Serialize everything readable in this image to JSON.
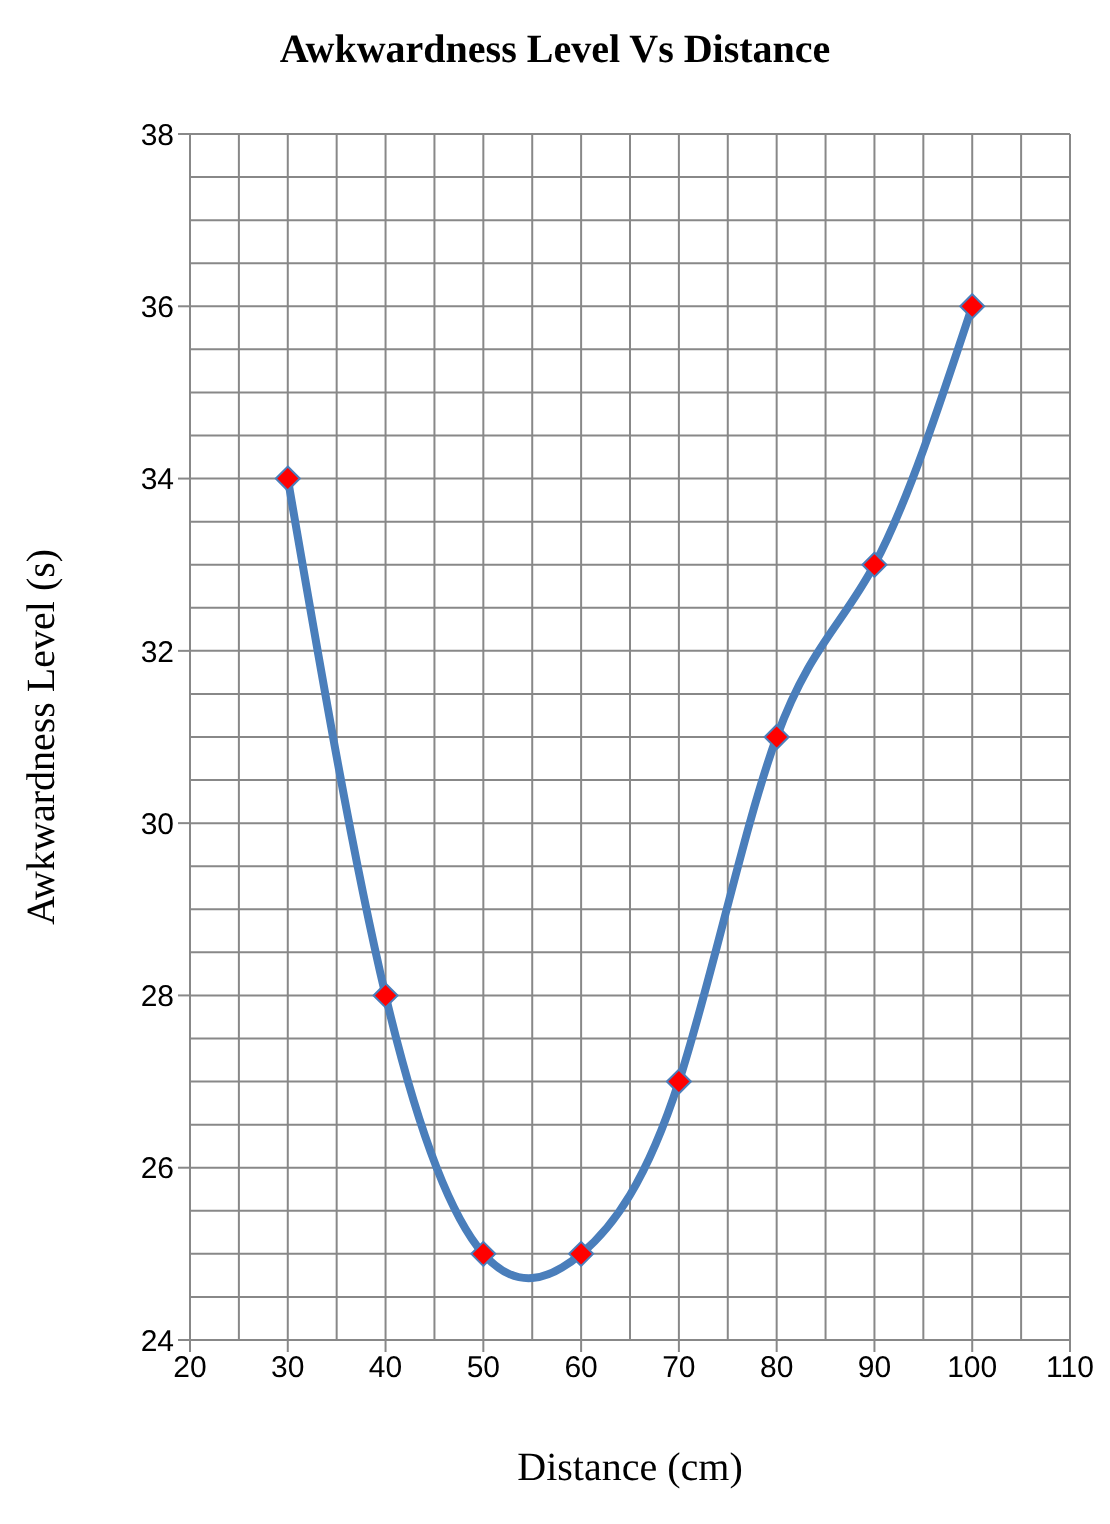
{
  "chart_data": {
    "type": "line",
    "title": "Awkwardness Level Vs Distance",
    "xlabel": "Distance (cm)",
    "ylabel": "Awkwardness Level (s)",
    "x": [
      30,
      40,
      50,
      60,
      70,
      80,
      90,
      100
    ],
    "series": [
      {
        "color": "#4a7ebb",
        "values": [
          34,
          28,
          25,
          25,
          27,
          31,
          33,
          36
        ]
      }
    ],
    "xlim": [
      20,
      110
    ],
    "xticks": [
      20,
      30,
      40,
      50,
      60,
      70,
      80,
      90,
      100,
      110
    ],
    "ylim": [
      24,
      38
    ],
    "yticks": [
      24,
      26,
      28,
      30,
      32,
      34,
      36,
      38
    ],
    "grid": true,
    "marker": "diamond",
    "line_style": "solid"
  }
}
